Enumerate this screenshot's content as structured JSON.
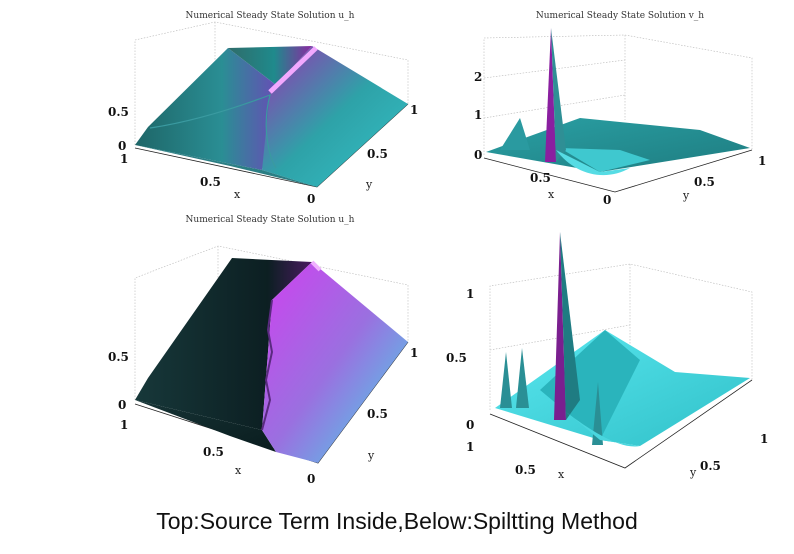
{
  "caption": "Top:Source Term Inside,Below:Spiltting Method",
  "chart_data": [
    {
      "type": "surface",
      "title": "Numerical Steady State Solution u_h",
      "xlabel": "x",
      "ylabel": "y",
      "x_ticks": [
        "1",
        "0.5",
        "0"
      ],
      "y_ticks": [
        "0.5",
        "1"
      ],
      "z_ticks": [
        "0",
        "0.5"
      ],
      "colormap": [
        "#2a5f5f",
        "#1f8a8a",
        "#7a2a9a",
        "#d040e0",
        "#40d0e0"
      ]
    },
    {
      "type": "surface",
      "title": "Numerical Steady State Solution v_h",
      "xlabel": "x",
      "ylabel": "y",
      "x_ticks": [
        "0.5",
        "0"
      ],
      "y_ticks": [
        "0.5",
        "1"
      ],
      "z_ticks": [
        "0",
        "1",
        "2"
      ],
      "colormap": [
        "#1f7f7f",
        "#28a8a8",
        "#7a1f8f",
        "#9a2aa8"
      ]
    },
    {
      "type": "surface",
      "title": "Numerical Steady State Solution u_h",
      "xlabel": "x",
      "ylabel": "y",
      "x_ticks": [
        "1",
        "0.5",
        "0"
      ],
      "y_ticks": [
        "0.5",
        "1"
      ],
      "z_ticks": [
        "0",
        "0.5"
      ],
      "colormap": [
        "#1a3f3f",
        "#0d2a2a",
        "#9a30c0",
        "#d040f0",
        "#40e0e8"
      ]
    },
    {
      "type": "surface",
      "title": "",
      "xlabel": "x",
      "ylabel": "y",
      "x_ticks": [
        "1",
        "0.5"
      ],
      "y_ticks": [
        "0.5",
        "1"
      ],
      "z_ticks": [
        "0",
        "0.5",
        "1"
      ],
      "colormap": [
        "#30c8d0",
        "#50e8f0",
        "#7a1f8f",
        "#9a2aa8"
      ]
    }
  ]
}
